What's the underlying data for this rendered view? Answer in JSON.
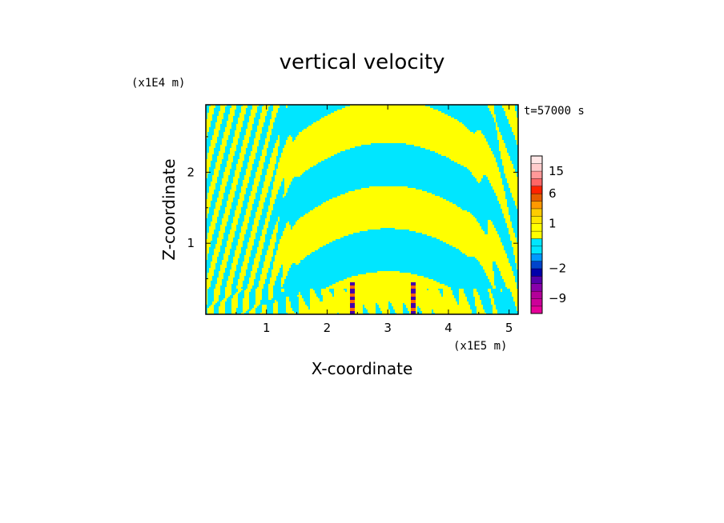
{
  "chart_data": {
    "type": "heatmap",
    "title": "vertical velocity",
    "xlabel": "X-coordinate",
    "ylabel": "Z-coordinate",
    "x_unit": "(x1E5 m)",
    "y_unit": "(x1E4 m)",
    "time_label": "t=57000 s",
    "xlim": [
      0,
      5.15
    ],
    "ylim": [
      0,
      2.95
    ],
    "x_ticks": [
      1,
      2,
      3,
      4,
      5
    ],
    "y_ticks": [
      1,
      2
    ],
    "colorbar": {
      "ticks": [
        15,
        6,
        1,
        -2,
        -9
      ],
      "levels": [
        -13,
        -11,
        -9,
        -7,
        -5,
        -3,
        -2,
        -1.5,
        -1,
        -0.5,
        0,
        0.5,
        1,
        1.5,
        2,
        4,
        6,
        8,
        11,
        15,
        19,
        24
      ],
      "colors": [
        "#e60099",
        "#cc0099",
        "#b30099",
        "#8800aa",
        "#5500aa",
        "#0000aa",
        "#0044cc",
        "#0099ff",
        "#00e6ff",
        "#00e6ff",
        "#ffff00",
        "#ffff00",
        "#ffe600",
        "#ffcc00",
        "#ff9900",
        "#e65c00",
        "#ff2200",
        "#ff6666",
        "#ff9999",
        "#ffcccc",
        "#ffe6e6"
      ]
    },
    "field_colors": {
      "positive": "#ffff00",
      "negative": "#00e6ff",
      "strong_up": "#ff6600",
      "strong_down": "#4400aa"
    }
  }
}
